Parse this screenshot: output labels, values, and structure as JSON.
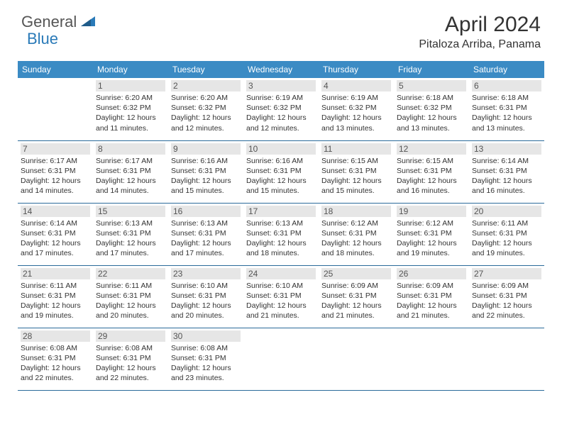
{
  "logo": {
    "text_general": "General",
    "text_blue": "Blue",
    "icon_color": "#2a7ab8"
  },
  "title": "April 2024",
  "location": "Pitaloza Arriba, Panama",
  "day_headers": [
    "Sunday",
    "Monday",
    "Tuesday",
    "Wednesday",
    "Thursday",
    "Friday",
    "Saturday"
  ],
  "colors": {
    "header_bg": "#3b8bc4",
    "header_text": "#ffffff",
    "week_border": "#2a6a9a",
    "daynum_bg": "#e6e6e6",
    "text": "#333333"
  },
  "weeks": [
    [
      null,
      {
        "n": "1",
        "sr": "Sunrise: 6:20 AM",
        "ss": "Sunset: 6:32 PM",
        "d1": "Daylight: 12 hours",
        "d2": "and 11 minutes."
      },
      {
        "n": "2",
        "sr": "Sunrise: 6:20 AM",
        "ss": "Sunset: 6:32 PM",
        "d1": "Daylight: 12 hours",
        "d2": "and 12 minutes."
      },
      {
        "n": "3",
        "sr": "Sunrise: 6:19 AM",
        "ss": "Sunset: 6:32 PM",
        "d1": "Daylight: 12 hours",
        "d2": "and 12 minutes."
      },
      {
        "n": "4",
        "sr": "Sunrise: 6:19 AM",
        "ss": "Sunset: 6:32 PM",
        "d1": "Daylight: 12 hours",
        "d2": "and 13 minutes."
      },
      {
        "n": "5",
        "sr": "Sunrise: 6:18 AM",
        "ss": "Sunset: 6:32 PM",
        "d1": "Daylight: 12 hours",
        "d2": "and 13 minutes."
      },
      {
        "n": "6",
        "sr": "Sunrise: 6:18 AM",
        "ss": "Sunset: 6:31 PM",
        "d1": "Daylight: 12 hours",
        "d2": "and 13 minutes."
      }
    ],
    [
      {
        "n": "7",
        "sr": "Sunrise: 6:17 AM",
        "ss": "Sunset: 6:31 PM",
        "d1": "Daylight: 12 hours",
        "d2": "and 14 minutes."
      },
      {
        "n": "8",
        "sr": "Sunrise: 6:17 AM",
        "ss": "Sunset: 6:31 PM",
        "d1": "Daylight: 12 hours",
        "d2": "and 14 minutes."
      },
      {
        "n": "9",
        "sr": "Sunrise: 6:16 AM",
        "ss": "Sunset: 6:31 PM",
        "d1": "Daylight: 12 hours",
        "d2": "and 15 minutes."
      },
      {
        "n": "10",
        "sr": "Sunrise: 6:16 AM",
        "ss": "Sunset: 6:31 PM",
        "d1": "Daylight: 12 hours",
        "d2": "and 15 minutes."
      },
      {
        "n": "11",
        "sr": "Sunrise: 6:15 AM",
        "ss": "Sunset: 6:31 PM",
        "d1": "Daylight: 12 hours",
        "d2": "and 15 minutes."
      },
      {
        "n": "12",
        "sr": "Sunrise: 6:15 AM",
        "ss": "Sunset: 6:31 PM",
        "d1": "Daylight: 12 hours",
        "d2": "and 16 minutes."
      },
      {
        "n": "13",
        "sr": "Sunrise: 6:14 AM",
        "ss": "Sunset: 6:31 PM",
        "d1": "Daylight: 12 hours",
        "d2": "and 16 minutes."
      }
    ],
    [
      {
        "n": "14",
        "sr": "Sunrise: 6:14 AM",
        "ss": "Sunset: 6:31 PM",
        "d1": "Daylight: 12 hours",
        "d2": "and 17 minutes."
      },
      {
        "n": "15",
        "sr": "Sunrise: 6:13 AM",
        "ss": "Sunset: 6:31 PM",
        "d1": "Daylight: 12 hours",
        "d2": "and 17 minutes."
      },
      {
        "n": "16",
        "sr": "Sunrise: 6:13 AM",
        "ss": "Sunset: 6:31 PM",
        "d1": "Daylight: 12 hours",
        "d2": "and 17 minutes."
      },
      {
        "n": "17",
        "sr": "Sunrise: 6:13 AM",
        "ss": "Sunset: 6:31 PM",
        "d1": "Daylight: 12 hours",
        "d2": "and 18 minutes."
      },
      {
        "n": "18",
        "sr": "Sunrise: 6:12 AM",
        "ss": "Sunset: 6:31 PM",
        "d1": "Daylight: 12 hours",
        "d2": "and 18 minutes."
      },
      {
        "n": "19",
        "sr": "Sunrise: 6:12 AM",
        "ss": "Sunset: 6:31 PM",
        "d1": "Daylight: 12 hours",
        "d2": "and 19 minutes."
      },
      {
        "n": "20",
        "sr": "Sunrise: 6:11 AM",
        "ss": "Sunset: 6:31 PM",
        "d1": "Daylight: 12 hours",
        "d2": "and 19 minutes."
      }
    ],
    [
      {
        "n": "21",
        "sr": "Sunrise: 6:11 AM",
        "ss": "Sunset: 6:31 PM",
        "d1": "Daylight: 12 hours",
        "d2": "and 19 minutes."
      },
      {
        "n": "22",
        "sr": "Sunrise: 6:11 AM",
        "ss": "Sunset: 6:31 PM",
        "d1": "Daylight: 12 hours",
        "d2": "and 20 minutes."
      },
      {
        "n": "23",
        "sr": "Sunrise: 6:10 AM",
        "ss": "Sunset: 6:31 PM",
        "d1": "Daylight: 12 hours",
        "d2": "and 20 minutes."
      },
      {
        "n": "24",
        "sr": "Sunrise: 6:10 AM",
        "ss": "Sunset: 6:31 PM",
        "d1": "Daylight: 12 hours",
        "d2": "and 21 minutes."
      },
      {
        "n": "25",
        "sr": "Sunrise: 6:09 AM",
        "ss": "Sunset: 6:31 PM",
        "d1": "Daylight: 12 hours",
        "d2": "and 21 minutes."
      },
      {
        "n": "26",
        "sr": "Sunrise: 6:09 AM",
        "ss": "Sunset: 6:31 PM",
        "d1": "Daylight: 12 hours",
        "d2": "and 21 minutes."
      },
      {
        "n": "27",
        "sr": "Sunrise: 6:09 AM",
        "ss": "Sunset: 6:31 PM",
        "d1": "Daylight: 12 hours",
        "d2": "and 22 minutes."
      }
    ],
    [
      {
        "n": "28",
        "sr": "Sunrise: 6:08 AM",
        "ss": "Sunset: 6:31 PM",
        "d1": "Daylight: 12 hours",
        "d2": "and 22 minutes."
      },
      {
        "n": "29",
        "sr": "Sunrise: 6:08 AM",
        "ss": "Sunset: 6:31 PM",
        "d1": "Daylight: 12 hours",
        "d2": "and 22 minutes."
      },
      {
        "n": "30",
        "sr": "Sunrise: 6:08 AM",
        "ss": "Sunset: 6:31 PM",
        "d1": "Daylight: 12 hours",
        "d2": "and 23 minutes."
      },
      null,
      null,
      null,
      null
    ]
  ]
}
